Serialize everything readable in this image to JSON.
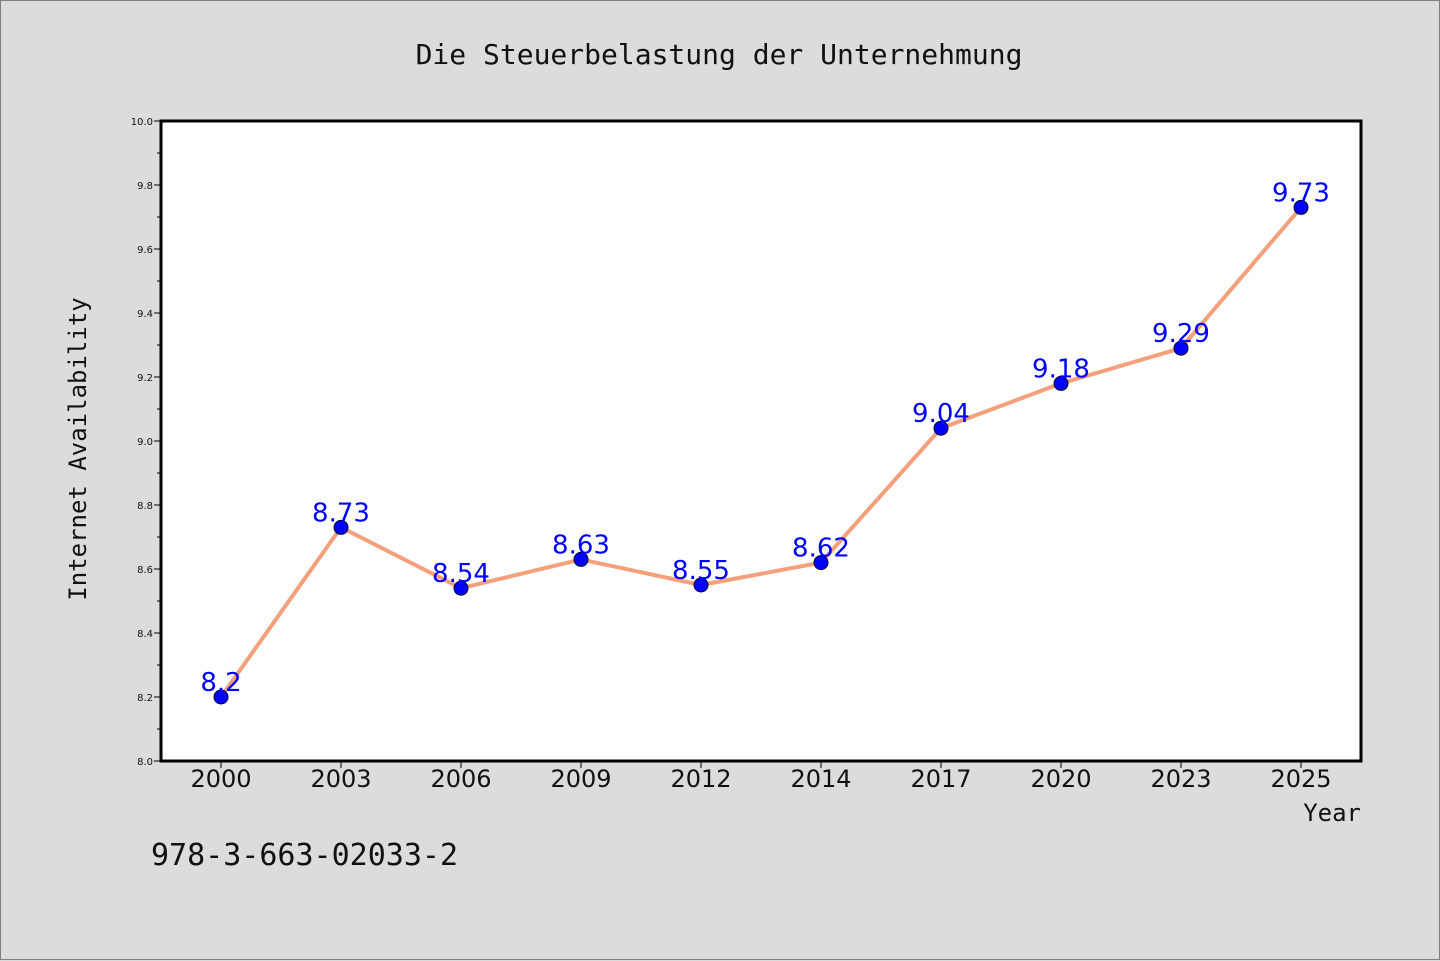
{
  "chart_data": {
    "type": "line",
    "title": "Die Steuerbelastung der Unternehmung",
    "xlabel": "Year",
    "ylabel": "Internet Availability",
    "categories": [
      "2000",
      "2003",
      "2006",
      "2009",
      "2012",
      "2014",
      "2017",
      "2020",
      "2023",
      "2025"
    ],
    "series": [
      {
        "values": [
          8.2,
          8.73,
          8.54,
          8.63,
          8.55,
          8.62,
          9.04,
          9.18,
          9.29,
          9.73
        ]
      }
    ],
    "ylim": [
      8.0,
      10.0
    ],
    "yticks": [
      "8.0",
      "8.2",
      "8.4",
      "8.6",
      "8.8",
      "9.0",
      "9.2",
      "9.4",
      "9.6",
      "9.8",
      "10.0"
    ],
    "grid": false,
    "legend": "none",
    "data_labels": true
  },
  "footnote": "978-3-663-02033-2",
  "colors": {
    "background": "#dcdcdc",
    "plot_area": "#ffffff",
    "line": "#f4a07a",
    "marker": "#0000ff",
    "data_label": "#0000ff"
  }
}
